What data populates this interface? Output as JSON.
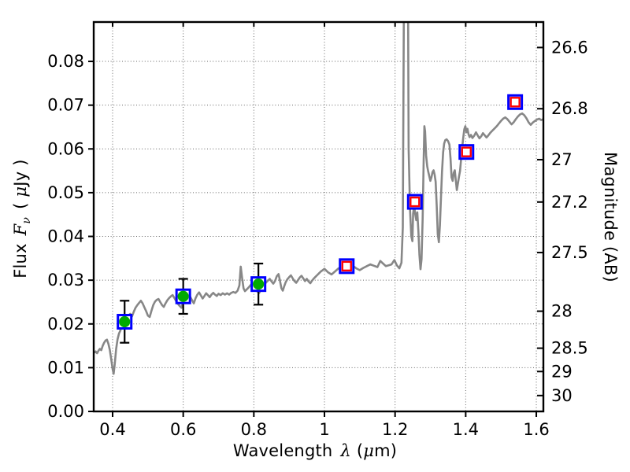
{
  "chart_data": {
    "type": "line",
    "title": "",
    "xlabel": {
      "name": "Wavelength",
      "lambda": "λ",
      "paren_open": "(",
      "mu": "μ",
      "rest": "m)"
    },
    "ylabel_left": {
      "name": "Flux",
      "symbol": "F",
      "sub": "ν",
      "paren_open": "( ",
      "mu": "μ",
      "rest": "Jy )"
    },
    "ylabel_right": "Magnitude (AB)",
    "xlim": [
      0.3465,
      1.62
    ],
    "ylim": [
      0.0,
      0.089
    ],
    "grid": {
      "show": true,
      "style": "dotted",
      "color": "#666666"
    },
    "x_ticks": {
      "values": [
        0.4,
        0.6,
        0.8,
        1.0,
        1.2,
        1.4,
        1.6
      ],
      "labels": [
        "0.4",
        "0.6",
        "0.8",
        "1",
        "1.2",
        "1.4",
        "1.6"
      ]
    },
    "y_ticks": {
      "values": [
        0.0,
        0.01,
        0.02,
        0.03,
        0.04,
        0.05,
        0.06,
        0.07,
        0.08
      ],
      "labels": [
        "0.00",
        "0.01",
        "0.02",
        "0.03",
        "0.04",
        "0.05",
        "0.06",
        "0.07",
        "0.08"
      ]
    },
    "right_ticks": {
      "mags": [
        26.6,
        26.8,
        27.0,
        27.2,
        27.5,
        28.0,
        28.5,
        29.0,
        30.0
      ],
      "labels": [
        "26.6",
        "26.8",
        "27",
        "27.2",
        "27.5",
        "28",
        "28.5",
        "29",
        "30"
      ],
      "ab_zeropoint": 23.9
    },
    "series": [
      {
        "name": "model-spectrum",
        "type": "line",
        "color": "#878787",
        "width": 2.6,
        "points": [
          [
            0.347,
            0.0134
          ],
          [
            0.352,
            0.0137
          ],
          [
            0.356,
            0.0133
          ],
          [
            0.36,
            0.0139
          ],
          [
            0.364,
            0.0143
          ],
          [
            0.368,
            0.014
          ],
          [
            0.372,
            0.015
          ],
          [
            0.376,
            0.0157
          ],
          [
            0.38,
            0.0162
          ],
          [
            0.384,
            0.0164
          ],
          [
            0.388,
            0.0155
          ],
          [
            0.392,
            0.0141
          ],
          [
            0.396,
            0.012
          ],
          [
            0.4,
            0.0097
          ],
          [
            0.403,
            0.0086
          ],
          [
            0.406,
            0.0108
          ],
          [
            0.41,
            0.0143
          ],
          [
            0.414,
            0.0165
          ],
          [
            0.418,
            0.0178
          ],
          [
            0.422,
            0.0185
          ],
          [
            0.426,
            0.0196
          ],
          [
            0.43,
            0.0191
          ],
          [
            0.434,
            0.0202
          ],
          [
            0.438,
            0.021
          ],
          [
            0.442,
            0.0215
          ],
          [
            0.446,
            0.022
          ],
          [
            0.45,
            0.0223
          ],
          [
            0.455,
            0.0217
          ],
          [
            0.46,
            0.0228
          ],
          [
            0.465,
            0.0237
          ],
          [
            0.47,
            0.0243
          ],
          [
            0.475,
            0.0248
          ],
          [
            0.48,
            0.0253
          ],
          [
            0.485,
            0.0247
          ],
          [
            0.49,
            0.0238
          ],
          [
            0.495,
            0.0229
          ],
          [
            0.5,
            0.0219
          ],
          [
            0.505,
            0.0216
          ],
          [
            0.51,
            0.023
          ],
          [
            0.515,
            0.0243
          ],
          [
            0.52,
            0.0251
          ],
          [
            0.525,
            0.0255
          ],
          [
            0.53,
            0.0257
          ],
          [
            0.535,
            0.025
          ],
          [
            0.54,
            0.0243
          ],
          [
            0.545,
            0.0239
          ],
          [
            0.55,
            0.0247
          ],
          [
            0.555,
            0.0254
          ],
          [
            0.56,
            0.0259
          ],
          [
            0.565,
            0.0263
          ],
          [
            0.57,
            0.0266
          ],
          [
            0.575,
            0.0259
          ],
          [
            0.58,
            0.0252
          ],
          [
            0.585,
            0.0246
          ],
          [
            0.59,
            0.0241
          ],
          [
            0.595,
            0.0237
          ],
          [
            0.6,
            0.0251
          ],
          [
            0.605,
            0.0261
          ],
          [
            0.61,
            0.0266
          ],
          [
            0.615,
            0.0269
          ],
          [
            0.62,
            0.0262
          ],
          [
            0.625,
            0.0254
          ],
          [
            0.63,
            0.0247
          ],
          [
            0.635,
            0.0259
          ],
          [
            0.64,
            0.0267
          ],
          [
            0.645,
            0.0272
          ],
          [
            0.65,
            0.0265
          ],
          [
            0.655,
            0.0258
          ],
          [
            0.66,
            0.0264
          ],
          [
            0.665,
            0.027
          ],
          [
            0.67,
            0.0266
          ],
          [
            0.675,
            0.0261
          ],
          [
            0.68,
            0.0267
          ],
          [
            0.685,
            0.0271
          ],
          [
            0.69,
            0.0267
          ],
          [
            0.695,
            0.0264
          ],
          [
            0.7,
            0.0269
          ],
          [
            0.706,
            0.0266
          ],
          [
            0.712,
            0.027
          ],
          [
            0.718,
            0.0267
          ],
          [
            0.724,
            0.027
          ],
          [
            0.73,
            0.0267
          ],
          [
            0.736,
            0.0271
          ],
          [
            0.742,
            0.0273
          ],
          [
            0.748,
            0.0271
          ],
          [
            0.754,
            0.0276
          ],
          [
            0.759,
            0.0288
          ],
          [
            0.763,
            0.0331
          ],
          [
            0.767,
            0.0304
          ],
          [
            0.771,
            0.0281
          ],
          [
            0.775,
            0.0275
          ],
          [
            0.78,
            0.0279
          ],
          [
            0.785,
            0.0283
          ],
          [
            0.79,
            0.0288
          ],
          [
            0.795,
            0.0292
          ],
          [
            0.8,
            0.0287
          ],
          [
            0.805,
            0.028
          ],
          [
            0.81,
            0.0274
          ],
          [
            0.815,
            0.0271
          ],
          [
            0.82,
            0.0278
          ],
          [
            0.825,
            0.0285
          ],
          [
            0.83,
            0.029
          ],
          [
            0.835,
            0.0295
          ],
          [
            0.84,
            0.0299
          ],
          [
            0.845,
            0.0303
          ],
          [
            0.85,
            0.0297
          ],
          [
            0.855,
            0.0292
          ],
          [
            0.86,
            0.0298
          ],
          [
            0.865,
            0.0309
          ],
          [
            0.87,
            0.0314
          ],
          [
            0.874,
            0.0299
          ],
          [
            0.878,
            0.0282
          ],
          [
            0.882,
            0.0276
          ],
          [
            0.886,
            0.0286
          ],
          [
            0.89,
            0.0295
          ],
          [
            0.895,
            0.0302
          ],
          [
            0.9,
            0.0307
          ],
          [
            0.905,
            0.0311
          ],
          [
            0.91,
            0.0304
          ],
          [
            0.915,
            0.0298
          ],
          [
            0.92,
            0.0294
          ],
          [
            0.925,
            0.03
          ],
          [
            0.93,
            0.0306
          ],
          [
            0.935,
            0.031
          ],
          [
            0.94,
            0.0304
          ],
          [
            0.945,
            0.0298
          ],
          [
            0.95,
            0.0303
          ],
          [
            0.955,
            0.0297
          ],
          [
            0.96,
            0.0293
          ],
          [
            0.965,
            0.0299
          ],
          [
            0.97,
            0.0304
          ],
          [
            0.975,
            0.0308
          ],
          [
            0.98,
            0.0312
          ],
          [
            0.985,
            0.0316
          ],
          [
            0.99,
            0.032
          ],
          [
            0.995,
            0.0323
          ],
          [
            1.0,
            0.0326
          ],
          [
            1.01,
            0.0318
          ],
          [
            1.02,
            0.0313
          ],
          [
            1.03,
            0.032
          ],
          [
            1.04,
            0.0327
          ],
          [
            1.05,
            0.033
          ],
          [
            1.06,
            0.0333
          ],
          [
            1.07,
            0.0336
          ],
          [
            1.08,
            0.0333
          ],
          [
            1.09,
            0.0327
          ],
          [
            1.1,
            0.0323
          ],
          [
            1.11,
            0.0328
          ],
          [
            1.12,
            0.0332
          ],
          [
            1.13,
            0.0336
          ],
          [
            1.14,
            0.0333
          ],
          [
            1.15,
            0.033
          ],
          [
            1.158,
            0.0344
          ],
          [
            1.166,
            0.0338
          ],
          [
            1.174,
            0.0332
          ],
          [
            1.182,
            0.0334
          ],
          [
            1.19,
            0.0336
          ],
          [
            1.198,
            0.0346
          ],
          [
            1.205,
            0.0334
          ],
          [
            1.212,
            0.0327
          ],
          [
            1.218,
            0.034
          ],
          [
            1.222,
            0.042
          ],
          [
            1.2265,
            0.12
          ],
          [
            1.2355,
            0.12
          ],
          [
            1.2385,
            0.06
          ],
          [
            1.2425,
            0.046
          ],
          [
            1.246,
            0.04
          ],
          [
            1.249,
            0.0389
          ],
          [
            1.251,
            0.0452
          ],
          [
            1.254,
            0.047
          ],
          [
            1.257,
            0.0452
          ],
          [
            1.26,
            0.0437
          ],
          [
            1.263,
            0.0455
          ],
          [
            1.266,
            0.0412
          ],
          [
            1.269,
            0.0358
          ],
          [
            1.272,
            0.0325
          ],
          [
            1.275,
            0.0348
          ],
          [
            1.278,
            0.044
          ],
          [
            1.281,
            0.0575
          ],
          [
            1.283,
            0.0652
          ],
          [
            1.285,
            0.064
          ],
          [
            1.288,
            0.0585
          ],
          [
            1.291,
            0.056
          ],
          [
            1.294,
            0.0548
          ],
          [
            1.297,
            0.0537
          ],
          [
            1.3,
            0.0527
          ],
          [
            1.303,
            0.0535
          ],
          [
            1.306,
            0.0547
          ],
          [
            1.309,
            0.0551
          ],
          [
            1.312,
            0.0541
          ],
          [
            1.315,
            0.0525
          ],
          [
            1.318,
            0.0468
          ],
          [
            1.321,
            0.0405
          ],
          [
            1.324,
            0.0387
          ],
          [
            1.327,
            0.0425
          ],
          [
            1.33,
            0.049
          ],
          [
            1.333,
            0.0548
          ],
          [
            1.336,
            0.0592
          ],
          [
            1.339,
            0.0612
          ],
          [
            1.342,
            0.062
          ],
          [
            1.346,
            0.0622
          ],
          [
            1.35,
            0.0618
          ],
          [
            1.354,
            0.061
          ],
          [
            1.357,
            0.0578
          ],
          [
            1.36,
            0.0535
          ],
          [
            1.363,
            0.0527
          ],
          [
            1.366,
            0.0545
          ],
          [
            1.369,
            0.0551
          ],
          [
            1.372,
            0.0528
          ],
          [
            1.375,
            0.0506
          ],
          [
            1.378,
            0.0521
          ],
          [
            1.381,
            0.0536
          ],
          [
            1.384,
            0.055
          ],
          [
            1.387,
            0.0576
          ],
          [
            1.39,
            0.0603
          ],
          [
            1.393,
            0.0625
          ],
          [
            1.396,
            0.0645
          ],
          [
            1.399,
            0.0652
          ],
          [
            1.402,
            0.0638
          ],
          [
            1.405,
            0.0646
          ],
          [
            1.408,
            0.0634
          ],
          [
            1.411,
            0.0627
          ],
          [
            1.415,
            0.0632
          ],
          [
            1.419,
            0.0625
          ],
          [
            1.424,
            0.063
          ],
          [
            1.429,
            0.0638
          ],
          [
            1.434,
            0.0631
          ],
          [
            1.439,
            0.0624
          ],
          [
            1.444,
            0.0629
          ],
          [
            1.449,
            0.0636
          ],
          [
            1.454,
            0.0631
          ],
          [
            1.459,
            0.0626
          ],
          [
            1.464,
            0.0631
          ],
          [
            1.47,
            0.0637
          ],
          [
            1.476,
            0.0642
          ],
          [
            1.482,
            0.0647
          ],
          [
            1.488,
            0.0652
          ],
          [
            1.494,
            0.0658
          ],
          [
            1.5,
            0.0664
          ],
          [
            1.506,
            0.0669
          ],
          [
            1.512,
            0.0672
          ],
          [
            1.518,
            0.0668
          ],
          [
            1.524,
            0.0662
          ],
          [
            1.53,
            0.0656
          ],
          [
            1.536,
            0.0661
          ],
          [
            1.542,
            0.0668
          ],
          [
            1.548,
            0.0674
          ],
          [
            1.554,
            0.0679
          ],
          [
            1.56,
            0.0681
          ],
          [
            1.566,
            0.0677
          ],
          [
            1.572,
            0.067
          ],
          [
            1.578,
            0.0661
          ],
          [
            1.584,
            0.0655
          ],
          [
            1.59,
            0.066
          ],
          [
            1.596,
            0.0664
          ],
          [
            1.602,
            0.0667
          ],
          [
            1.608,
            0.0669
          ],
          [
            1.614,
            0.0666
          ],
          [
            1.62,
            0.0668
          ]
        ]
      },
      {
        "name": "measured-photometry",
        "type": "scatter",
        "marker": "green-circle-in-blue-square",
        "edge_color": "#0000FF",
        "fill_color": "#00AA00",
        "errorbar_color": "#000000",
        "points": [
          {
            "x": 0.434,
            "y": 0.0205,
            "yerr": 0.0048
          },
          {
            "x": 0.6,
            "y": 0.0263,
            "yerr": 0.004
          },
          {
            "x": 0.813,
            "y": 0.0291,
            "yerr": 0.0047
          }
        ]
      },
      {
        "name": "model-photometry",
        "type": "scatter",
        "marker": "red-open-square-in-blue-square",
        "edge_color": "#0000FF",
        "inner_color": "#FF0000",
        "points": [
          {
            "x": 1.063,
            "y": 0.0332
          },
          {
            "x": 1.256,
            "y": 0.0479
          },
          {
            "x": 1.402,
            "y": 0.0593
          },
          {
            "x": 1.54,
            "y": 0.0707
          }
        ]
      }
    ]
  }
}
